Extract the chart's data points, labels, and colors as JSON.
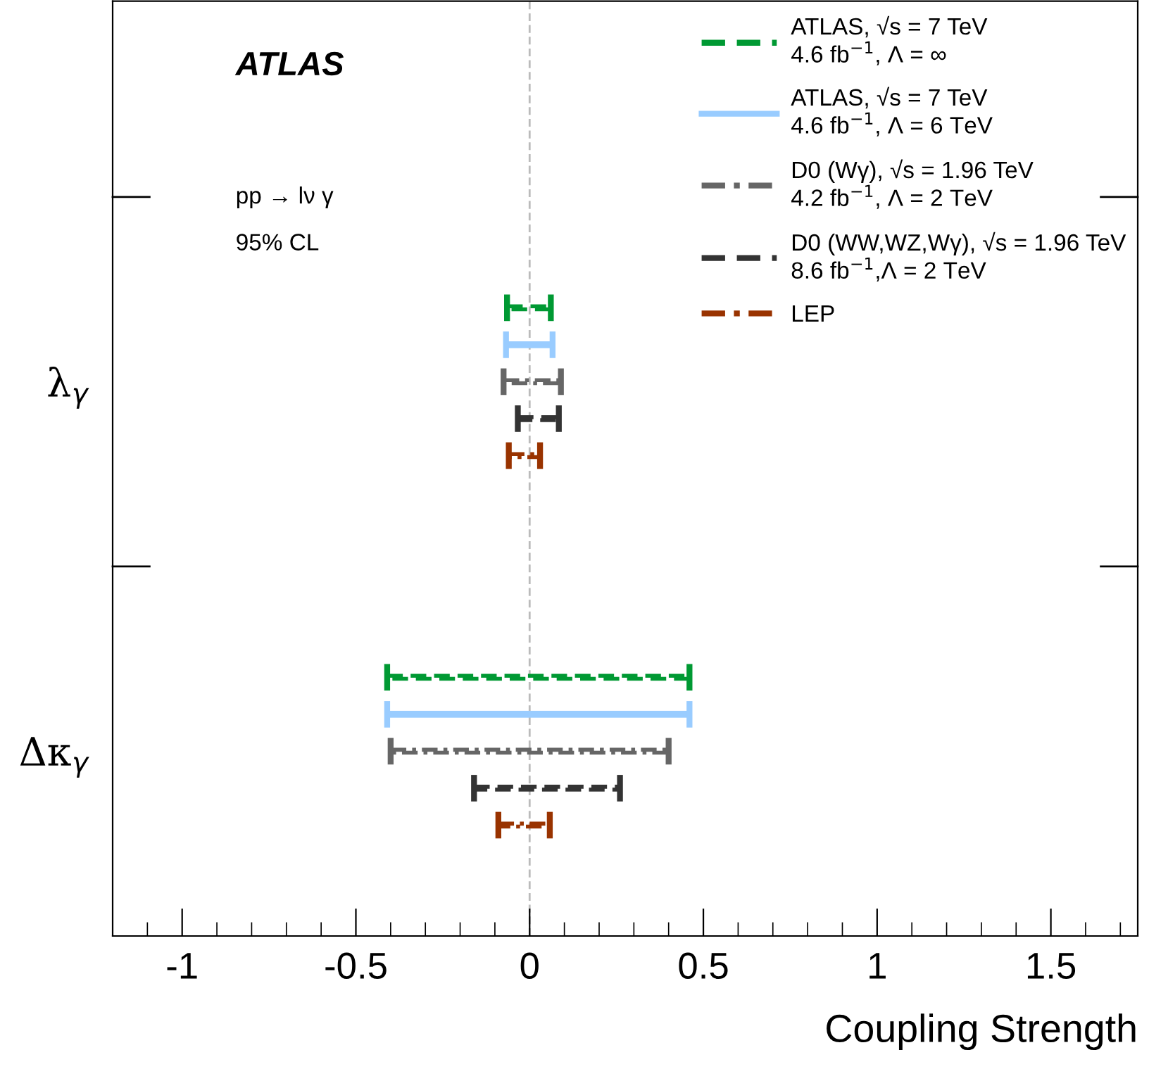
{
  "chart_data": {
    "type": "bar",
    "orientation": "horizontal",
    "categories": [
      "λ$_{γ}$",
      "Δκ$_{γ}$"
    ],
    "series": [
      {
        "name": "ATLAS, √s = 7 TeV\n4.6 fb$^{−1}$, Λ = ∞",
        "color": "#009933",
        "line_style": "dashed",
        "base": [
          -0.065,
          -0.41
        ],
        "values": [
          0.126,
          0.87
        ]
      },
      {
        "name": "ATLAS, √s = 7 TeV\n4.6 fb$^{−1}$, Λ = 6 TeV",
        "color": "#99ccff",
        "line_style": "solid",
        "base": [
          -0.068,
          -0.41
        ],
        "values": [
          0.134,
          0.87
        ]
      },
      {
        "name": "D0 (Wγ), √s = 1.96 TeV\n4.2 fb$^{−1}$, Λ = 2 TeV",
        "color": "#666666",
        "line_style": "dashdot",
        "base": [
          -0.075,
          -0.4
        ],
        "values": [
          0.165,
          0.8
        ]
      },
      {
        "name": "D0 (WW,WZ,Wγ), √s = 1.96 TeV\n8.6 fb$^{−1}$,Λ = 2 TeV",
        "color": "#333333",
        "line_style": "dashed",
        "base": [
          -0.034,
          -0.16
        ],
        "values": [
          0.118,
          0.42
        ]
      },
      {
        "name": "LEP",
        "color": "#993300",
        "line_style": "dashdot",
        "base": [
          -0.06,
          -0.09
        ],
        "values": [
          0.09,
          0.148
        ]
      }
    ],
    "xlabel": "Coupling Strength",
    "xlim": [
      -1.2,
      1.75
    ],
    "xticks": [
      -1,
      -0.5,
      0,
      0.5,
      1,
      1.5
    ],
    "ref_lines": [
      {
        "axis": "x",
        "value": 0,
        "color": "#bbbbbb",
        "line_style": "dashed"
      }
    ],
    "annotations": [
      "ATLAS",
      "pp → lν γ",
      "95% CL"
    ],
    "legend": "top right"
  }
}
